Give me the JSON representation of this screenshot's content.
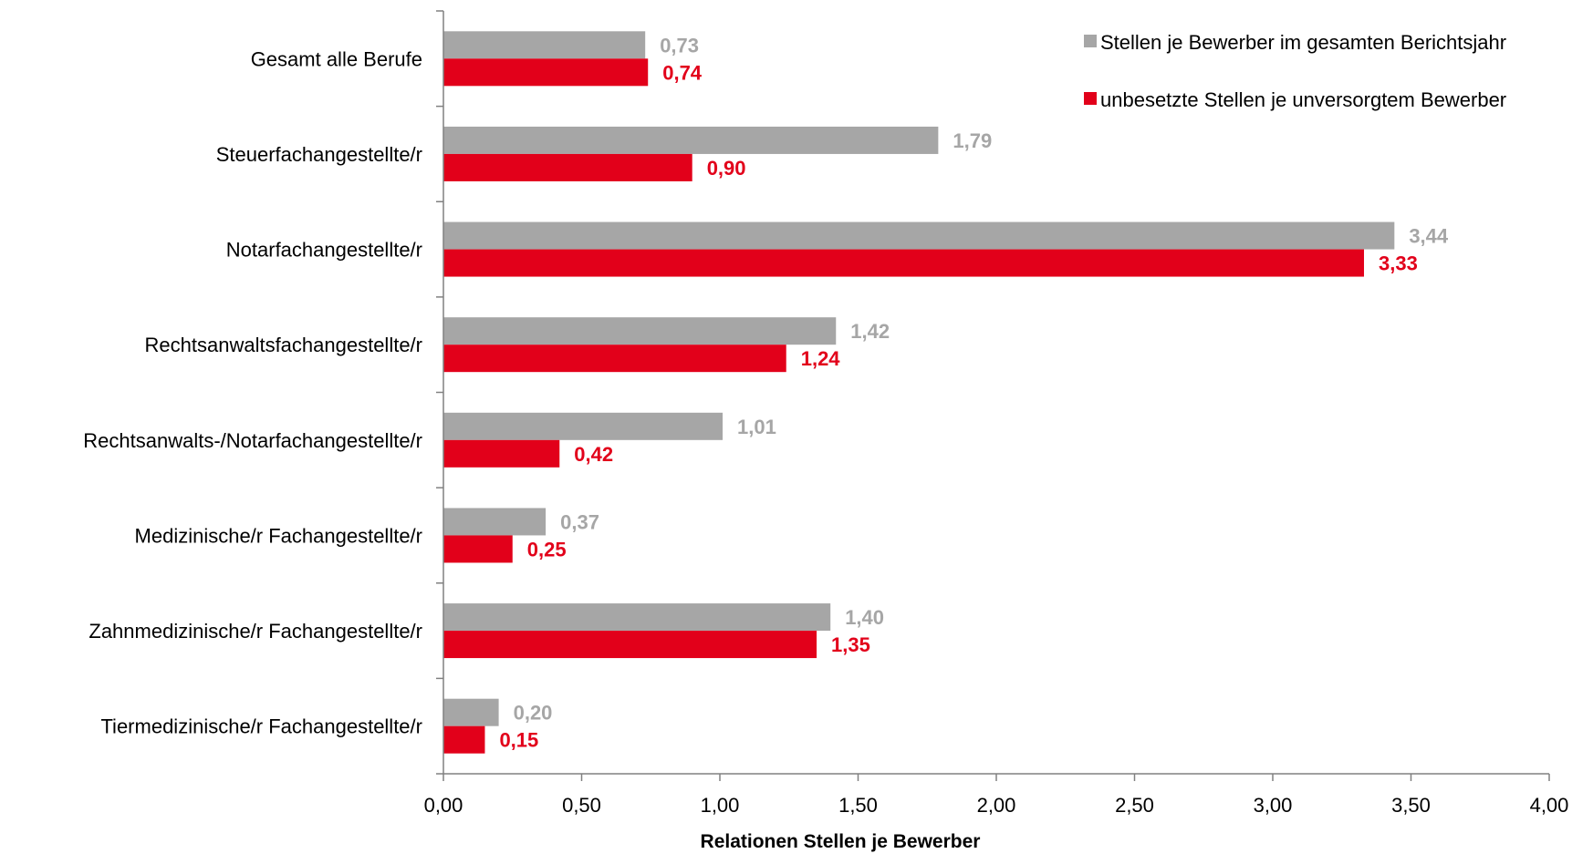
{
  "chart_data": {
    "type": "bar",
    "orientation": "horizontal",
    "categories": [
      "Gesamt alle Berufe",
      "Steuerfachangestellte/r",
      "Notarfachangestellte/r",
      "Rechtsanwaltsfachangestellte/r",
      "Rechtsanwalts-/Notarfachangestellte/r",
      "Medizinische/r Fachangestellte/r",
      "Zahnmedizinische/r Fachangestellte/r",
      "Tiermedizinische/r Fachangestellte/r"
    ],
    "series": [
      {
        "name": "Stellen je Bewerber im gesamten Berichtsjahr",
        "color": "#a6a6a6",
        "values": [
          0.73,
          1.79,
          3.44,
          1.42,
          1.01,
          0.37,
          1.4,
          0.2
        ],
        "labels": [
          "0,73",
          "1,79",
          "3,44",
          "1,42",
          "1,01",
          "0,37",
          "1,40",
          "0,20"
        ]
      },
      {
        "name": "unbesetzte Stellen je unversorgtem Bewerber",
        "color": "#e2001a",
        "values": [
          0.74,
          0.9,
          3.33,
          1.24,
          0.42,
          0.25,
          1.35,
          0.15
        ],
        "labels": [
          "0,74",
          "0,90",
          "3,33",
          "1,24",
          "0,42",
          "0,25",
          "1,35",
          "0,15"
        ]
      }
    ],
    "xlabel": "Relationen Stellen je Bewerber",
    "xlim": [
      0,
      4
    ],
    "xticks": [
      0,
      0.5,
      1,
      1.5,
      2,
      2.5,
      3,
      3.5,
      4
    ],
    "xtick_labels": [
      "0,00",
      "0,50",
      "1,00",
      "1,50",
      "2,00",
      "2,50",
      "3,00",
      "3,50",
      "4,00"
    ],
    "grid": false,
    "legend_position": "top-right"
  }
}
